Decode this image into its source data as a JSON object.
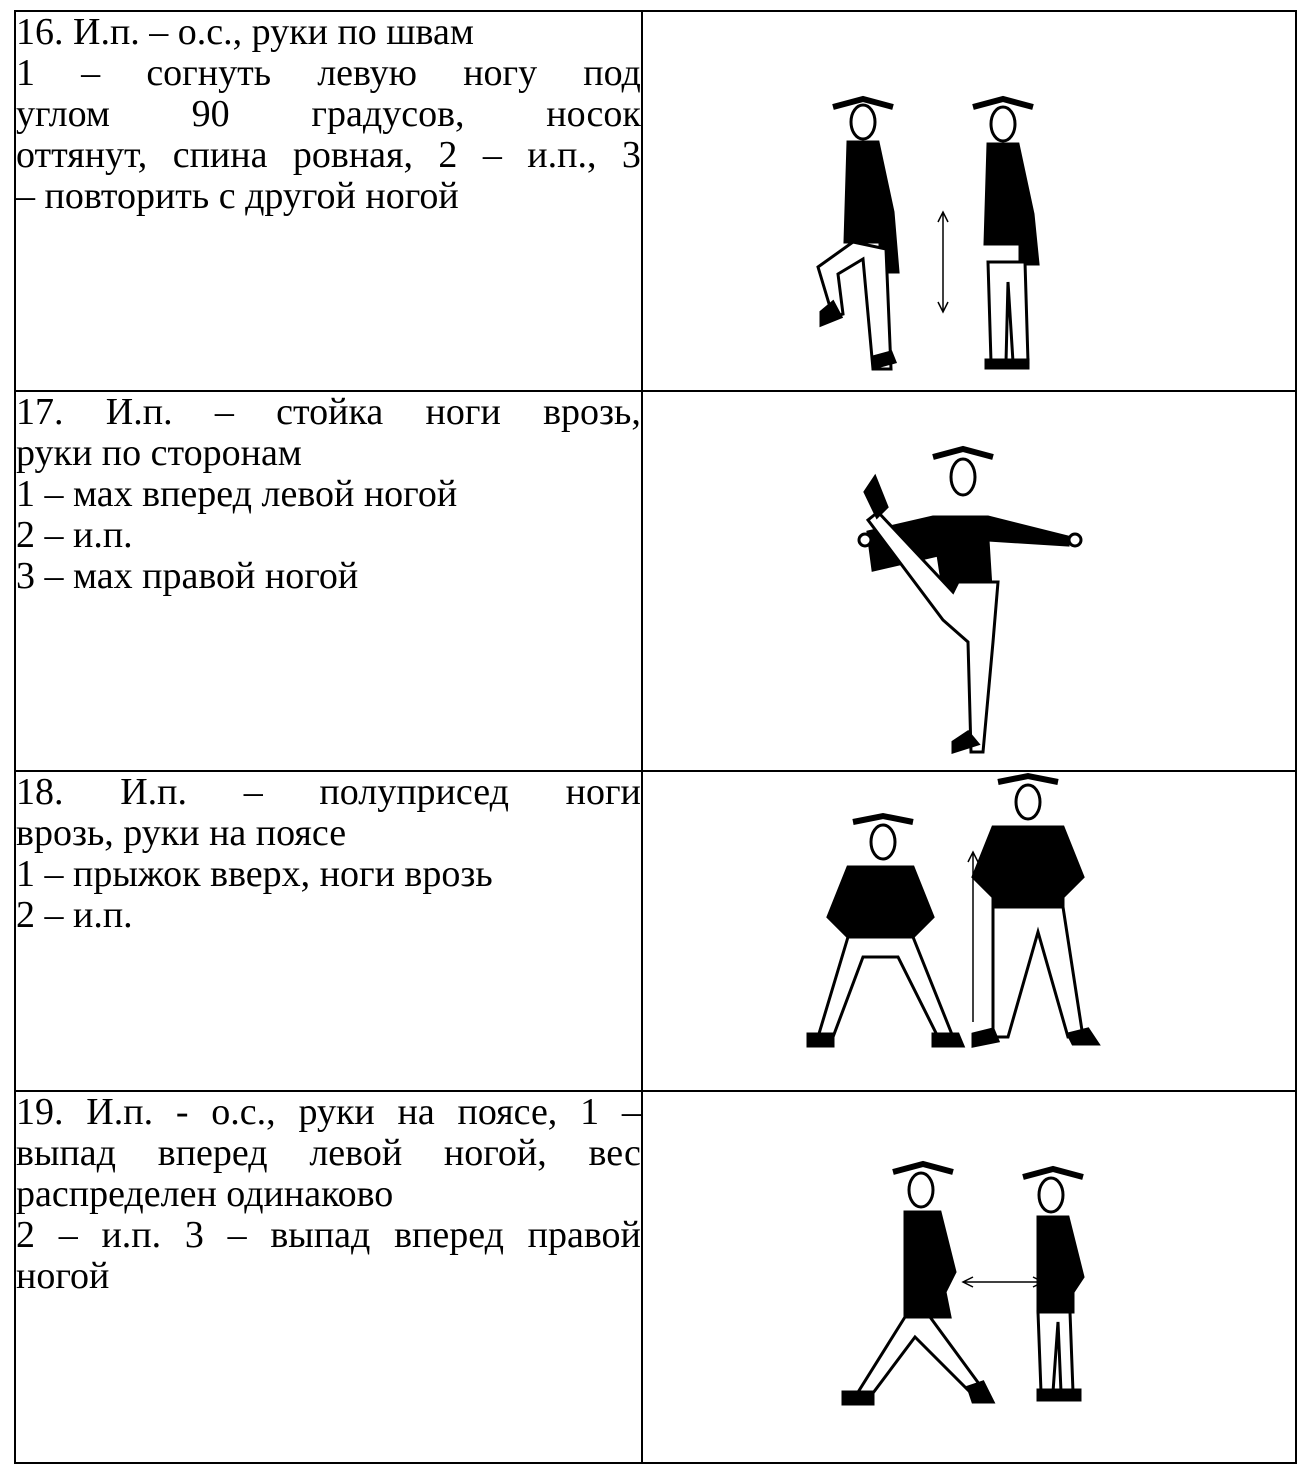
{
  "table": {
    "rows": [
      {
        "paragraphs": [
          [
            "16. И.п. – о.с., руки по швам"
          ],
          [
            "1 – согнуть левую ногу под",
            "углом 90 градусов, носок",
            "оттянут, спина ровная, 2 – и.п., 3",
            "– повторить с другой ногой"
          ]
        ]
      },
      {
        "paragraphs": [
          [
            "17. И.п. – стойка ноги врозь,",
            "руки по сторонам"
          ],
          [
            "1 – мах вперед левой ногой"
          ],
          [
            "2 – и.п."
          ],
          [
            "3 – мах правой ногой"
          ]
        ]
      },
      {
        "paragraphs": [
          [
            "18. И.п. – полуприсед ноги",
            "врозь, руки на поясе"
          ],
          [
            "1 – прыжок вверх, ноги врозь"
          ],
          [
            "2 – и.п."
          ]
        ]
      },
      {
        "paragraphs": [
          [
            "19. И.п. - о.с., руки на поясе, 1 –",
            "выпад вперед левой ногой, вес",
            "распределен одинаково"
          ],
          [
            "2 – и.п. 3 – выпад вперед правой",
            "ногой"
          ]
        ]
      }
    ]
  }
}
